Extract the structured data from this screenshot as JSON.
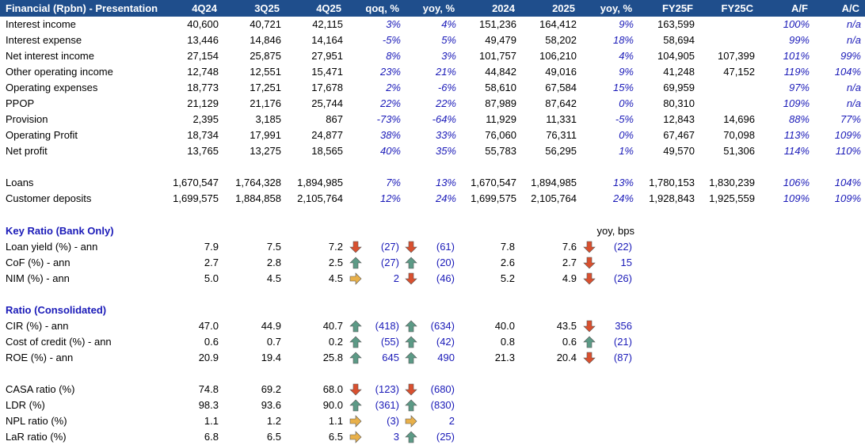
{
  "header": {
    "title": "Financial (Rpbn) - Presentation",
    "cols": [
      "4Q24",
      "3Q25",
      "4Q25",
      "qoq, %",
      "yoy, %",
      "2024",
      "2025",
      "yoy, %",
      "FY25F",
      "FY25C",
      "A/F",
      "A/C"
    ]
  },
  "financials": [
    {
      "label": "Interest income",
      "v": [
        "40,600",
        "40,721",
        "42,115",
        "3%",
        "4%",
        "151,236",
        "164,412",
        "9%",
        "163,599",
        "",
        "100%",
        "n/a"
      ]
    },
    {
      "label": "Interest expense",
      "v": [
        "13,446",
        "14,846",
        "14,164",
        "-5%",
        "5%",
        "49,479",
        "58,202",
        "18%",
        "58,694",
        "",
        "99%",
        "n/a"
      ]
    },
    {
      "label": "Net interest income",
      "v": [
        "27,154",
        "25,875",
        "27,951",
        "8%",
        "3%",
        "101,757",
        "106,210",
        "4%",
        "104,905",
        "107,399",
        "101%",
        "99%"
      ]
    },
    {
      "label": "Other operating income",
      "v": [
        "12,748",
        "12,551",
        "15,471",
        "23%",
        "21%",
        "44,842",
        "49,016",
        "9%",
        "41,248",
        "47,152",
        "119%",
        "104%"
      ]
    },
    {
      "label": "Operating expenses",
      "v": [
        "18,773",
        "17,251",
        "17,678",
        "2%",
        "-6%",
        "58,610",
        "67,584",
        "15%",
        "69,959",
        "",
        "97%",
        "n/a"
      ]
    },
    {
      "label": "PPOP",
      "v": [
        "21,129",
        "21,176",
        "25,744",
        "22%",
        "22%",
        "87,989",
        "87,642",
        "0%",
        "80,310",
        "",
        "109%",
        "n/a"
      ]
    },
    {
      "label": "Provision",
      "v": [
        "2,395",
        "3,185",
        "867",
        "-73%",
        "-64%",
        "11,929",
        "11,331",
        "-5%",
        "12,843",
        "14,696",
        "88%",
        "77%"
      ]
    },
    {
      "label": "Operating Profit",
      "v": [
        "18,734",
        "17,991",
        "24,877",
        "38%",
        "33%",
        "76,060",
        "76,311",
        "0%",
        "67,467",
        "70,098",
        "113%",
        "109%"
      ]
    },
    {
      "label": "Net profit",
      "v": [
        "13,765",
        "13,275",
        "18,565",
        "40%",
        "35%",
        "55,783",
        "56,295",
        "1%",
        "49,570",
        "51,306",
        "114%",
        "110%"
      ]
    }
  ],
  "balance": [
    {
      "label": "Loans",
      "v": [
        "1,670,547",
        "1,764,328",
        "1,894,985",
        "7%",
        "13%",
        "1,670,547",
        "1,894,985",
        "13%",
        "1,780,153",
        "1,830,239",
        "106%",
        "104%"
      ]
    },
    {
      "label": "Customer deposits",
      "v": [
        "1,699,575",
        "1,884,858",
        "2,105,764",
        "12%",
        "24%",
        "1,699,575",
        "2,105,764",
        "24%",
        "1,928,843",
        "1,925,559",
        "109%",
        "109%"
      ]
    }
  ],
  "key_ratio": {
    "title": "Key Ratio (Bank Only)",
    "bps_note": "yoy, bps",
    "rows": [
      {
        "label": "Loan yield (%) - ann",
        "q1": "7.9",
        "q2": "7.5",
        "q3": "7.2",
        "a1": "down",
        "qoq": "(27)",
        "a2": "down",
        "yoy": "(61)",
        "y1": "7.8",
        "y2": "7.6",
        "a3": "down",
        "yy": "(22)"
      },
      {
        "label": "CoF (%) - ann",
        "q1": "2.7",
        "q2": "2.8",
        "q3": "2.5",
        "a1": "up",
        "qoq": "(27)",
        "a2": "up",
        "yoy": "(20)",
        "y1": "2.6",
        "y2": "2.7",
        "a3": "down",
        "yy": "15"
      },
      {
        "label": "NIM (%) - ann",
        "q1": "5.0",
        "q2": "4.5",
        "q3": "4.5",
        "a1": "right",
        "qoq": "2",
        "a2": "down",
        "yoy": "(46)",
        "y1": "5.2",
        "y2": "4.9",
        "a3": "down",
        "yy": "(26)"
      }
    ]
  },
  "consolidated": {
    "title": "Ratio (Consolidated)",
    "rows": [
      {
        "label": "CIR (%) - ann",
        "q1": "47.0",
        "q2": "44.9",
        "q3": "40.7",
        "a1": "up",
        "qoq": "(418)",
        "a2": "up",
        "yoy": "(634)",
        "y1": "40.0",
        "y2": "43.5",
        "a3": "down",
        "yy": "356"
      },
      {
        "label": "Cost of credit (%) - ann",
        "q1": "0.6",
        "q2": "0.7",
        "q3": "0.2",
        "a1": "up",
        "qoq": "(55)",
        "a2": "up",
        "yoy": "(42)",
        "y1": "0.8",
        "y2": "0.6",
        "a3": "up",
        "yy": "(21)"
      },
      {
        "label": "ROE (%) - ann",
        "q1": "20.9",
        "q2": "19.4",
        "q3": "25.8",
        "a1": "up",
        "qoq": "645",
        "a2": "up",
        "yoy": "490",
        "y1": "21.3",
        "y2": "20.4",
        "a3": "down",
        "yy": "(87)"
      }
    ]
  },
  "other_ratios": [
    {
      "label": "CASA ratio (%)",
      "q1": "74.8",
      "q2": "69.2",
      "q3": "68.0",
      "a1": "down",
      "qoq": "(123)",
      "a2": "down",
      "yoy": "(680)"
    },
    {
      "label": "LDR (%)",
      "q1": "98.3",
      "q2": "93.6",
      "q3": "90.0",
      "a1": "up",
      "qoq": "(361)",
      "a2": "up",
      "yoy": "(830)"
    },
    {
      "label": "NPL ratio (%)",
      "q1": "1.1",
      "q2": "1.2",
      "q3": "1.1",
      "a1": "right",
      "qoq": "(3)",
      "a2": "right",
      "yoy": "2"
    },
    {
      "label": "LaR ratio (%)",
      "q1": "6.8",
      "q2": "6.5",
      "q3": "6.5",
      "a1": "right",
      "qoq": "3",
      "a2": "up",
      "yoy": "(25)"
    }
  ],
  "colors": {
    "header_bg": "#1f4e8c",
    "value_blue": "#1a1ab8",
    "arrow_down": "#d9502f",
    "arrow_up": "#5c9a86",
    "arrow_right": "#e8b04a"
  }
}
